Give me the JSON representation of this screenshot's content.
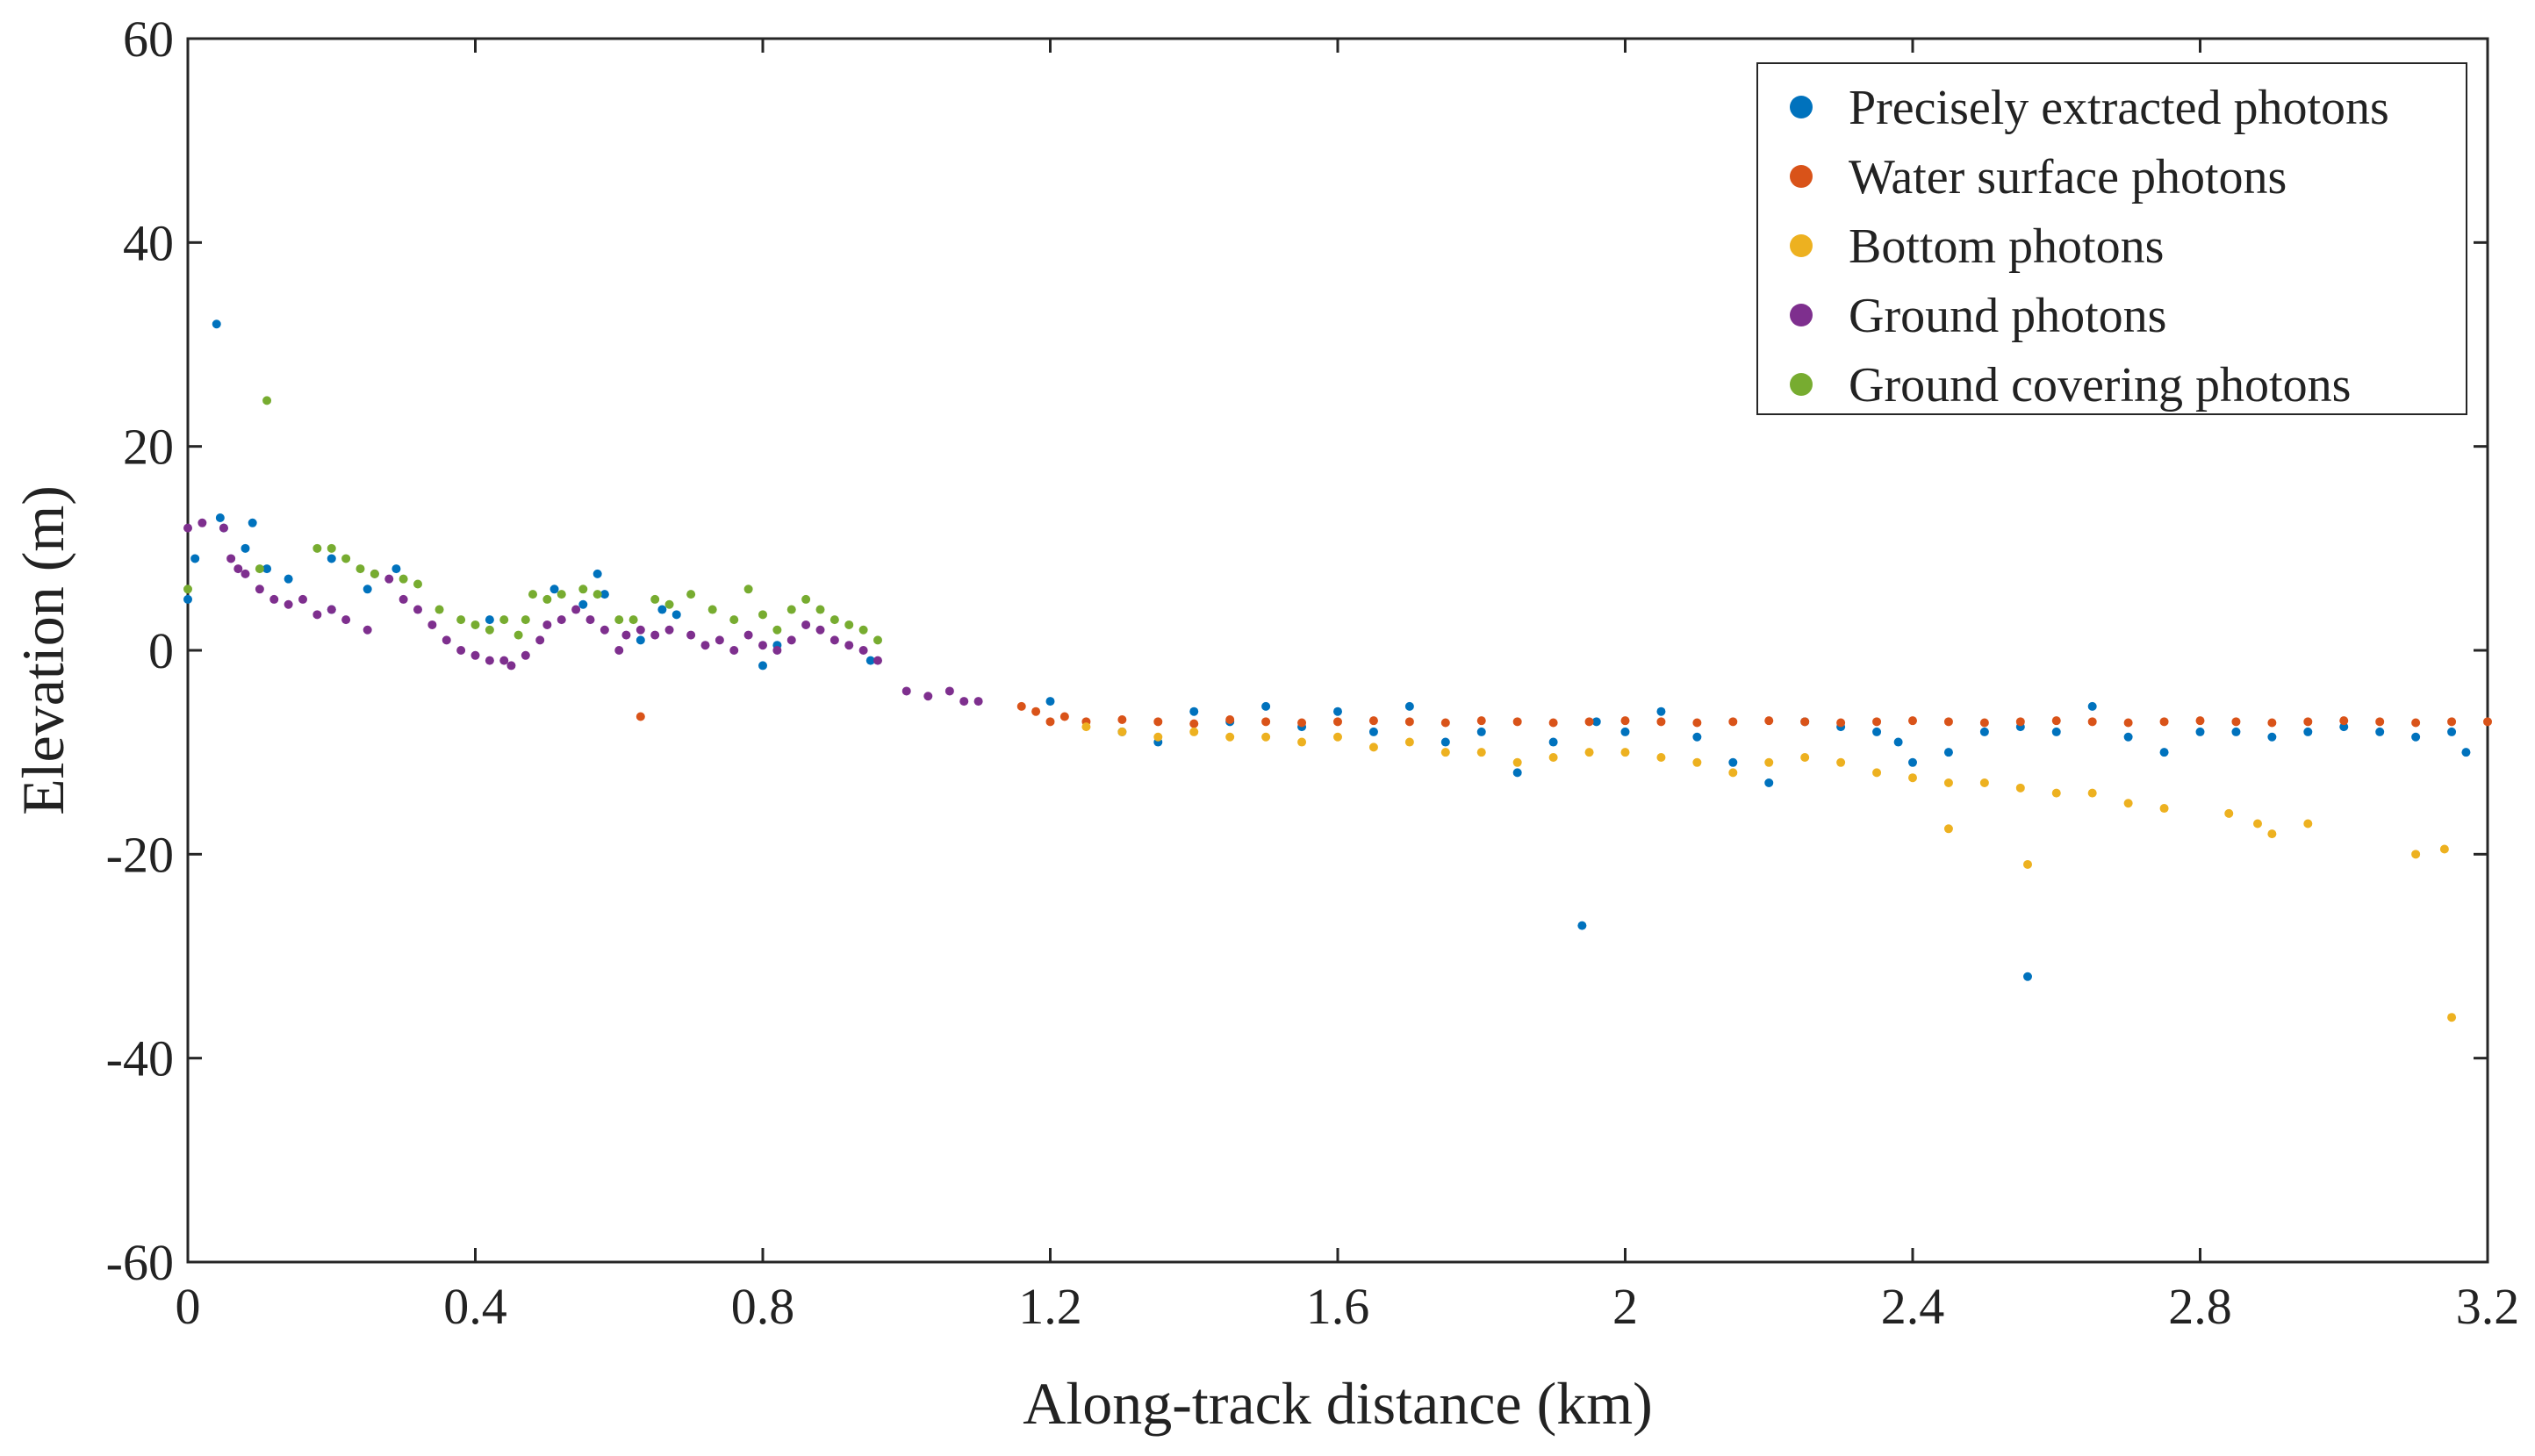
{
  "chart_data": {
    "type": "scatter",
    "xlabel": "Along-track distance (km)",
    "ylabel": "Elevation (m)",
    "xlim": [
      0,
      3.2
    ],
    "ylim": [
      -60,
      60
    ],
    "xticks": [
      0,
      0.4,
      0.8,
      1.2,
      1.6,
      2,
      2.4,
      2.8,
      3.2
    ],
    "xtick_labels": [
      "0",
      "0.4",
      "0.8",
      "1.2",
      "1.6",
      "2",
      "2.4",
      "2.8",
      "3.2"
    ],
    "yticks": [
      60,
      40,
      20,
      0,
      -20,
      -40,
      -60
    ],
    "ytick_labels": [
      "60",
      "40",
      "20",
      "0",
      "-20",
      "-40",
      "-60"
    ],
    "grid": false,
    "legend_position": "top-right",
    "series": [
      {
        "name": "Precisely extracted photons",
        "color": "#0072BD",
        "points": [
          [
            0.0,
            5
          ],
          [
            0.01,
            9
          ],
          [
            0.04,
            32
          ],
          [
            0.045,
            13
          ],
          [
            0.05,
            12
          ],
          [
            0.08,
            10
          ],
          [
            0.09,
            12.5
          ],
          [
            0.11,
            8
          ],
          [
            0.14,
            7
          ],
          [
            0.2,
            9
          ],
          [
            0.2,
            4
          ],
          [
            0.25,
            6
          ],
          [
            0.29,
            8
          ],
          [
            0.42,
            3
          ],
          [
            0.51,
            6
          ],
          [
            0.55,
            4.5
          ],
          [
            0.57,
            7.5
          ],
          [
            0.58,
            5.5
          ],
          [
            0.63,
            1
          ],
          [
            0.66,
            4
          ],
          [
            0.68,
            3.5
          ],
          [
            0.8,
            -1.5
          ],
          [
            0.82,
            0.5
          ],
          [
            0.95,
            -1
          ],
          [
            1.2,
            -5
          ],
          [
            1.3,
            -8
          ],
          [
            1.35,
            -9
          ],
          [
            1.4,
            -6
          ],
          [
            1.45,
            -7
          ],
          [
            1.5,
            -5.5
          ],
          [
            1.55,
            -7.5
          ],
          [
            1.6,
            -6
          ],
          [
            1.65,
            -8
          ],
          [
            1.7,
            -5.5
          ],
          [
            1.75,
            -9
          ],
          [
            1.8,
            -8
          ],
          [
            1.85,
            -12
          ],
          [
            1.9,
            -9
          ],
          [
            1.94,
            -27
          ],
          [
            1.96,
            -7
          ],
          [
            2.0,
            -8
          ],
          [
            2.05,
            -6
          ],
          [
            2.1,
            -8.5
          ],
          [
            2.15,
            -11
          ],
          [
            2.2,
            -13
          ],
          [
            2.25,
            -7
          ],
          [
            2.3,
            -7.5
          ],
          [
            2.35,
            -8
          ],
          [
            2.38,
            -9
          ],
          [
            2.4,
            -11
          ],
          [
            2.45,
            -10
          ],
          [
            2.5,
            -8
          ],
          [
            2.55,
            -7.5
          ],
          [
            2.56,
            -32
          ],
          [
            2.6,
            -8
          ],
          [
            2.65,
            -5.5
          ],
          [
            2.7,
            -8.5
          ],
          [
            2.75,
            -10
          ],
          [
            2.8,
            -8
          ],
          [
            2.85,
            -8
          ],
          [
            2.9,
            -8.5
          ],
          [
            2.95,
            -8
          ],
          [
            3.0,
            -7.5
          ],
          [
            3.05,
            -8
          ],
          [
            3.1,
            -8.5
          ],
          [
            3.15,
            -8
          ],
          [
            3.17,
            -10
          ]
        ]
      },
      {
        "name": "Water surface photons",
        "color": "#D95319",
        "points": [
          [
            0.63,
            -6.5
          ],
          [
            1.16,
            -5.5
          ],
          [
            1.18,
            -6
          ],
          [
            1.2,
            -7
          ],
          [
            1.22,
            -6.5
          ],
          [
            1.25,
            -7
          ],
          [
            1.3,
            -6.8
          ],
          [
            1.35,
            -7
          ],
          [
            1.4,
            -7.2
          ],
          [
            1.45,
            -6.8
          ],
          [
            1.5,
            -7
          ],
          [
            1.55,
            -7.1
          ],
          [
            1.6,
            -7
          ],
          [
            1.65,
            -6.9
          ],
          [
            1.7,
            -7
          ],
          [
            1.75,
            -7.1
          ],
          [
            1.8,
            -6.9
          ],
          [
            1.85,
            -7
          ],
          [
            1.9,
            -7.1
          ],
          [
            1.95,
            -7
          ],
          [
            2.0,
            -6.9
          ],
          [
            2.05,
            -7
          ],
          [
            2.1,
            -7.1
          ],
          [
            2.15,
            -7
          ],
          [
            2.2,
            -6.9
          ],
          [
            2.25,
            -7
          ],
          [
            2.3,
            -7.1
          ],
          [
            2.35,
            -7
          ],
          [
            2.4,
            -6.9
          ],
          [
            2.45,
            -7
          ],
          [
            2.5,
            -7.1
          ],
          [
            2.55,
            -7
          ],
          [
            2.6,
            -6.9
          ],
          [
            2.65,
            -7
          ],
          [
            2.7,
            -7.1
          ],
          [
            2.75,
            -7
          ],
          [
            2.8,
            -6.9
          ],
          [
            2.85,
            -7
          ],
          [
            2.9,
            -7.1
          ],
          [
            2.95,
            -7
          ],
          [
            3.0,
            -6.9
          ],
          [
            3.05,
            -7
          ],
          [
            3.1,
            -7.1
          ],
          [
            3.15,
            -7
          ],
          [
            3.2,
            -7
          ]
        ]
      },
      {
        "name": "Bottom photons",
        "color": "#EDB120",
        "points": [
          [
            1.25,
            -7.5
          ],
          [
            1.3,
            -8
          ],
          [
            1.35,
            -8.5
          ],
          [
            1.4,
            -8
          ],
          [
            1.45,
            -8.5
          ],
          [
            1.5,
            -8.5
          ],
          [
            1.55,
            -9
          ],
          [
            1.6,
            -8.5
          ],
          [
            1.65,
            -9.5
          ],
          [
            1.7,
            -9
          ],
          [
            1.75,
            -10
          ],
          [
            1.8,
            -10
          ],
          [
            1.85,
            -11
          ],
          [
            1.9,
            -10.5
          ],
          [
            1.95,
            -10
          ],
          [
            2.0,
            -10
          ],
          [
            2.05,
            -10.5
          ],
          [
            2.1,
            -11
          ],
          [
            2.15,
            -12
          ],
          [
            2.2,
            -11
          ],
          [
            2.25,
            -10.5
          ],
          [
            2.3,
            -11
          ],
          [
            2.35,
            -12
          ],
          [
            2.4,
            -12.5
          ],
          [
            2.45,
            -13
          ],
          [
            2.45,
            -17.5
          ],
          [
            2.5,
            -13
          ],
          [
            2.55,
            -13.5
          ],
          [
            2.56,
            -21
          ],
          [
            2.6,
            -14
          ],
          [
            2.65,
            -14
          ],
          [
            2.7,
            -15
          ],
          [
            2.75,
            -15.5
          ],
          [
            2.84,
            -16
          ],
          [
            2.88,
            -17
          ],
          [
            2.9,
            -18
          ],
          [
            2.95,
            -17
          ],
          [
            3.1,
            -20
          ],
          [
            3.14,
            -19.5
          ],
          [
            3.15,
            -36
          ]
        ]
      },
      {
        "name": "Ground photons",
        "color": "#7E2F8E",
        "points": [
          [
            0.0,
            12
          ],
          [
            0.02,
            12.5
          ],
          [
            0.05,
            12
          ],
          [
            0.06,
            9
          ],
          [
            0.07,
            8
          ],
          [
            0.08,
            7.5
          ],
          [
            0.1,
            6
          ],
          [
            0.12,
            5
          ],
          [
            0.14,
            4.5
          ],
          [
            0.16,
            5
          ],
          [
            0.18,
            3.5
          ],
          [
            0.2,
            4
          ],
          [
            0.22,
            3
          ],
          [
            0.25,
            2
          ],
          [
            0.26,
            7.5
          ],
          [
            0.28,
            7
          ],
          [
            0.3,
            5
          ],
          [
            0.32,
            4
          ],
          [
            0.34,
            2.5
          ],
          [
            0.36,
            1
          ],
          [
            0.38,
            0
          ],
          [
            0.4,
            -0.5
          ],
          [
            0.42,
            -1
          ],
          [
            0.44,
            -1
          ],
          [
            0.45,
            -1.5
          ],
          [
            0.47,
            -0.5
          ],
          [
            0.49,
            1
          ],
          [
            0.5,
            2.5
          ],
          [
            0.52,
            3
          ],
          [
            0.54,
            4
          ],
          [
            0.56,
            3
          ],
          [
            0.58,
            2
          ],
          [
            0.6,
            0
          ],
          [
            0.61,
            1.5
          ],
          [
            0.63,
            2
          ],
          [
            0.65,
            1.5
          ],
          [
            0.67,
            2
          ],
          [
            0.7,
            1.5
          ],
          [
            0.72,
            0.5
          ],
          [
            0.74,
            1
          ],
          [
            0.76,
            0
          ],
          [
            0.78,
            1.5
          ],
          [
            0.8,
            0.5
          ],
          [
            0.82,
            0
          ],
          [
            0.84,
            1
          ],
          [
            0.86,
            2.5
          ],
          [
            0.88,
            2
          ],
          [
            0.9,
            1
          ],
          [
            0.92,
            0.5
          ],
          [
            0.94,
            0
          ],
          [
            0.96,
            -1
          ],
          [
            1.0,
            -4
          ],
          [
            1.03,
            -4.5
          ],
          [
            1.06,
            -4
          ],
          [
            1.08,
            -5
          ],
          [
            1.1,
            -5
          ]
        ]
      },
      {
        "name": "Ground covering photons",
        "color": "#77AC30",
        "points": [
          [
            0.0,
            6
          ],
          [
            0.1,
            8
          ],
          [
            0.11,
            24.5
          ],
          [
            0.18,
            10
          ],
          [
            0.2,
            10
          ],
          [
            0.22,
            9
          ],
          [
            0.24,
            8
          ],
          [
            0.26,
            7.5
          ],
          [
            0.3,
            7
          ],
          [
            0.32,
            6.5
          ],
          [
            0.35,
            4
          ],
          [
            0.38,
            3
          ],
          [
            0.4,
            2.5
          ],
          [
            0.42,
            2
          ],
          [
            0.44,
            3
          ],
          [
            0.46,
            1.5
          ],
          [
            0.47,
            3
          ],
          [
            0.48,
            5.5
          ],
          [
            0.5,
            5
          ],
          [
            0.52,
            5.5
          ],
          [
            0.55,
            6
          ],
          [
            0.57,
            5.5
          ],
          [
            0.6,
            3
          ],
          [
            0.62,
            3
          ],
          [
            0.65,
            5
          ],
          [
            0.67,
            4.5
          ],
          [
            0.7,
            5.5
          ],
          [
            0.73,
            4
          ],
          [
            0.76,
            3
          ],
          [
            0.78,
            6
          ],
          [
            0.8,
            3.5
          ],
          [
            0.82,
            2
          ],
          [
            0.84,
            4
          ],
          [
            0.86,
            5
          ],
          [
            0.88,
            4
          ],
          [
            0.9,
            3
          ],
          [
            0.92,
            2.5
          ],
          [
            0.94,
            2
          ],
          [
            0.96,
            1
          ]
        ]
      }
    ]
  }
}
